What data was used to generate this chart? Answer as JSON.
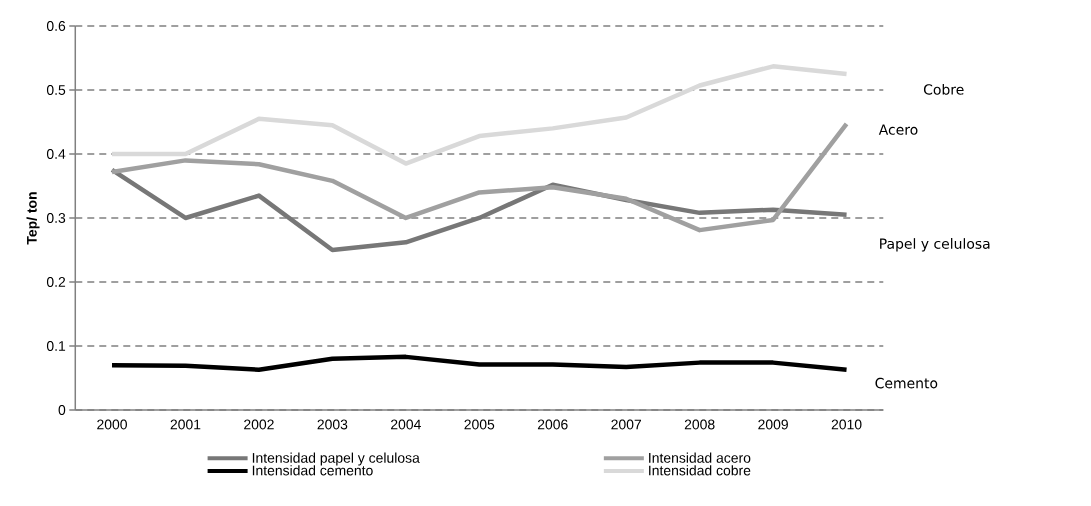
{
  "chart_data": {
    "type": "line",
    "ylabel": "Tep/ ton",
    "categories": [
      "2000",
      "2001",
      "2002",
      "2003",
      "2004",
      "2005",
      "2006",
      "2007",
      "2008",
      "2009",
      "2010"
    ],
    "series": [
      {
        "name": "Intensidad papel y celulosa",
        "color": "#777777",
        "values": [
          0.375,
          0.3,
          0.335,
          0.25,
          0.262,
          0.3,
          0.352,
          0.328,
          0.308,
          0.313,
          0.305
        ]
      },
      {
        "name": "Intensidad acero",
        "color": "#a0a0a0",
        "values": [
          0.372,
          0.39,
          0.384,
          0.358,
          0.3,
          0.34,
          0.348,
          0.33,
          0.281,
          0.297,
          0.447
        ]
      },
      {
        "name": "Intensidad cemento",
        "color": "#000000",
        "values": [
          0.07,
          0.069,
          0.063,
          0.08,
          0.083,
          0.071,
          0.071,
          0.067,
          0.074,
          0.074,
          0.063
        ]
      },
      {
        "name": "Intensidad cobre",
        "color": "#d9d9d9",
        "values": [
          0.4,
          0.4,
          0.455,
          0.445,
          0.385,
          0.428,
          0.44,
          0.457,
          0.507,
          0.537,
          0.525
        ]
      }
    ],
    "ylim": [
      0,
      0.6
    ],
    "yticks": [
      0,
      0.1,
      0.2,
      0.3,
      0.4,
      0.5,
      0.6
    ],
    "grid": "y",
    "legend": "bottom",
    "marker": "none",
    "line_style": "solid",
    "annotations": [
      "Cobre",
      "Acero",
      "Papel y celulosa",
      "Cemento"
    ]
  }
}
